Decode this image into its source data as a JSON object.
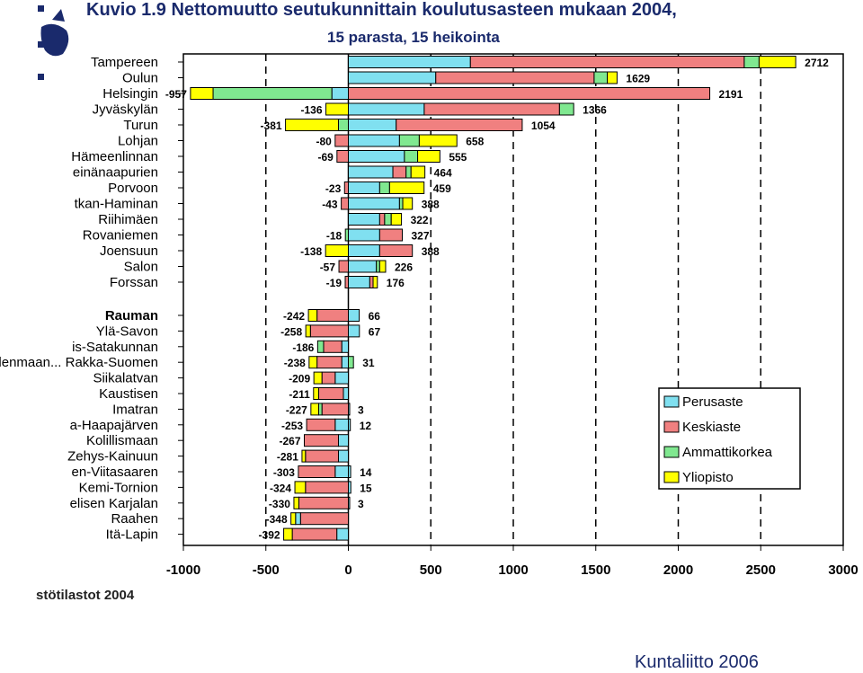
{
  "title": "Kuvio 1.9 Nettomuutto seutukunnittain koulutusasteen mukaan 2004,",
  "subtitle": "15 parasta, 15 heikointa",
  "source": "stötilastot 2004",
  "credit": "Kuntaliitto 2006",
  "colors": {
    "Perusaste": "#80e0f0",
    "Keskiaste": "#f08080",
    "Ammattikorkea": "#80e890",
    "Yliopisto": "#ffff00"
  },
  "chart_data": {
    "type": "bar",
    "orientation": "horizontal",
    "stacked": true,
    "xlim": [
      -1000,
      3000
    ],
    "xticks": [
      -1000,
      -500,
      0,
      500,
      1000,
      1500,
      2000,
      2500,
      3000
    ],
    "legend_position": "bottom-right",
    "series_names": [
      "Perusaste",
      "Keskiaste",
      "Ammattikorkea",
      "Yliopisto"
    ],
    "categories": [
      {
        "label": "Tampereen",
        "neg": null,
        "pos": "2712",
        "segs": [
          [
            0,
            740,
            "Perusaste"
          ],
          [
            740,
            2400,
            "Keskiaste"
          ],
          [
            2400,
            2490,
            "Ammattikorkea"
          ],
          [
            2490,
            2712,
            "Yliopisto"
          ]
        ]
      },
      {
        "label": "Oulun",
        "neg": null,
        "pos": "1629",
        "segs": [
          [
            0,
            530,
            "Perusaste"
          ],
          [
            530,
            1490,
            "Keskiaste"
          ],
          [
            1490,
            1570,
            "Ammattikorkea"
          ],
          [
            1570,
            1629,
            "Yliopisto"
          ]
        ]
      },
      {
        "label": "Helsingin",
        "neg": "-957",
        "pos": "2191",
        "segs": [
          [
            0,
            -100,
            "Perusaste"
          ],
          [
            -100,
            -820,
            "Ammattikorkea"
          ],
          [
            -820,
            -957,
            "Yliopisto"
          ],
          [
            0,
            2191,
            "Keskiaste"
          ]
        ]
      },
      {
        "label": "Jyväskylän",
        "neg": "-136",
        "pos": "1366",
        "segs": [
          [
            0,
            460,
            "Perusaste"
          ],
          [
            460,
            1280,
            "Keskiaste"
          ],
          [
            1280,
            1366,
            "Ammattikorkea"
          ],
          [
            0,
            -136,
            "Yliopisto"
          ]
        ]
      },
      {
        "label": "Turun",
        "neg": "-381",
        "pos": "1054",
        "segs": [
          [
            0,
            290,
            "Perusaste"
          ],
          [
            290,
            1054,
            "Keskiaste"
          ],
          [
            0,
            -60,
            "Ammattikorkea"
          ],
          [
            -60,
            -381,
            "Yliopisto"
          ]
        ]
      },
      {
        "label": "Lohjan",
        "neg": "-80",
        "pos": "658",
        "segs": [
          [
            0,
            310,
            "Perusaste"
          ],
          [
            310,
            430,
            "Ammattikorkea"
          ],
          [
            430,
            658,
            "Yliopisto"
          ],
          [
            0,
            -80,
            "Keskiaste"
          ]
        ]
      },
      {
        "label": "Hämeenlinnan",
        "neg": "-69",
        "pos": "555",
        "segs": [
          [
            0,
            340,
            "Perusaste"
          ],
          [
            340,
            420,
            "Ammattikorkea"
          ],
          [
            420,
            555,
            "Yliopisto"
          ],
          [
            0,
            -69,
            "Keskiaste"
          ]
        ]
      },
      {
        "label": "einänaapurien",
        "neg": null,
        "pos": "464",
        "segs": [
          [
            0,
            270,
            "Perusaste"
          ],
          [
            270,
            350,
            "Keskiaste"
          ],
          [
            350,
            380,
            "Ammattikorkea"
          ],
          [
            380,
            464,
            "Yliopisto"
          ]
        ]
      },
      {
        "label": "Porvoon",
        "neg": "-23",
        "pos": "459",
        "segs": [
          [
            0,
            190,
            "Perusaste"
          ],
          [
            190,
            250,
            "Ammattikorkea"
          ],
          [
            250,
            459,
            "Yliopisto"
          ],
          [
            0,
            -23,
            "Keskiaste"
          ]
        ]
      },
      {
        "label": "tkan-Haminan",
        "neg": "-43",
        "pos": "388",
        "segs": [
          [
            0,
            310,
            "Perusaste"
          ],
          [
            310,
            330,
            "Ammattikorkea"
          ],
          [
            330,
            388,
            "Yliopisto"
          ],
          [
            0,
            -43,
            "Keskiaste"
          ]
        ]
      },
      {
        "label": "Riihimäen",
        "neg": null,
        "pos": "322",
        "segs": [
          [
            0,
            190,
            "Perusaste"
          ],
          [
            190,
            220,
            "Keskiaste"
          ],
          [
            220,
            260,
            "Ammattikorkea"
          ],
          [
            260,
            322,
            "Yliopisto"
          ]
        ]
      },
      {
        "label": "Rovaniemen",
        "neg": "-18",
        "pos": "327",
        "segs": [
          [
            0,
            190,
            "Perusaste"
          ],
          [
            190,
            327,
            "Keskiaste"
          ],
          [
            0,
            -18,
            "Ammattikorkea"
          ]
        ]
      },
      {
        "label": "Joensuun",
        "neg": "-138",
        "pos": "388",
        "segs": [
          [
            0,
            190,
            "Perusaste"
          ],
          [
            190,
            388,
            "Keskiaste"
          ],
          [
            0,
            -138,
            "Yliopisto"
          ]
        ]
      },
      {
        "label": "Salon",
        "neg": "-57",
        "pos": "226",
        "segs": [
          [
            0,
            170,
            "Perusaste"
          ],
          [
            170,
            190,
            "Ammattikorkea"
          ],
          [
            190,
            226,
            "Yliopisto"
          ],
          [
            0,
            -57,
            "Keskiaste"
          ]
        ]
      },
      {
        "label": "Forssan",
        "neg": "-19",
        "pos": "176",
        "segs": [
          [
            0,
            130,
            "Perusaste"
          ],
          [
            130,
            150,
            "Keskiaste"
          ],
          [
            150,
            176,
            "Yliopisto"
          ],
          [
            0,
            -19,
            "Keskiaste"
          ]
        ]
      },
      {
        "label": "Rauman",
        "neg": "-242",
        "pos": "66",
        "segs": [
          [
            0,
            66,
            "Perusaste"
          ],
          [
            0,
            -190,
            "Keskiaste"
          ],
          [
            -190,
            -242,
            "Yliopisto"
          ]
        ]
      },
      {
        "label": "Ylä-Savon",
        "neg": "-258",
        "pos": "67",
        "segs": [
          [
            0,
            67,
            "Perusaste"
          ],
          [
            0,
            -230,
            "Keskiaste"
          ],
          [
            -230,
            -258,
            "Yliopisto"
          ]
        ]
      },
      {
        "label": "is-Satakunnan",
        "neg": "-186",
        "pos": null,
        "segs": [
          [
            0,
            -40,
            "Perusaste"
          ],
          [
            -40,
            -150,
            "Keskiaste"
          ],
          [
            -150,
            -186,
            "Ammattikorkea"
          ]
        ]
      },
      {
        "label": "Itä-Uudenmaan... Rakka-Suomen",
        "neg": "-238",
        "pos": "31",
        "segs": [
          [
            0,
            31,
            "Ammattikorkea"
          ],
          [
            0,
            -40,
            "Perusaste"
          ],
          [
            -40,
            -190,
            "Keskiaste"
          ],
          [
            -190,
            -238,
            "Yliopisto"
          ]
        ]
      },
      {
        "label": "Siikalatvan",
        "neg": "-209",
        "pos": null,
        "segs": [
          [
            0,
            -80,
            "Perusaste"
          ],
          [
            -80,
            -160,
            "Keskiaste"
          ],
          [
            -160,
            -209,
            "Yliopisto"
          ]
        ]
      },
      {
        "label": "Kaustisen",
        "neg": "-211",
        "pos": null,
        "segs": [
          [
            0,
            -30,
            "Perusaste"
          ],
          [
            -30,
            -180,
            "Keskiaste"
          ],
          [
            -180,
            -211,
            "Yliopisto"
          ]
        ]
      },
      {
        "label": "Imatran",
        "neg": "-227",
        "pos": "3",
        "segs": [
          [
            0,
            3,
            "Perusaste"
          ],
          [
            0,
            -160,
            "Keskiaste"
          ],
          [
            -160,
            -180,
            "Ammattikorkea"
          ],
          [
            -180,
            -227,
            "Yliopisto"
          ]
        ]
      },
      {
        "label": "a-Haapajärven",
        "neg": "-253",
        "pos": "12",
        "segs": [
          [
            0,
            12,
            "Perusaste"
          ],
          [
            0,
            -80,
            "Perusaste"
          ],
          [
            -80,
            -253,
            "Keskiaste"
          ]
        ]
      },
      {
        "label": "Kolillismaan",
        "neg": "-267",
        "pos": null,
        "segs": [
          [
            0,
            -60,
            "Perusaste"
          ],
          [
            -60,
            -267,
            "Keskiaste"
          ]
        ]
      },
      {
        "label": "Zehys-Kainuun",
        "neg": "-281",
        "pos": null,
        "segs": [
          [
            0,
            -60,
            "Perusaste"
          ],
          [
            -60,
            -260,
            "Keskiaste"
          ],
          [
            -260,
            -281,
            "Yliopisto"
          ]
        ]
      },
      {
        "label": "en-Viitasaaren",
        "neg": "-303",
        "pos": "14",
        "segs": [
          [
            0,
            14,
            "Perusaste"
          ],
          [
            0,
            -80,
            "Perusaste"
          ],
          [
            -80,
            -303,
            "Keskiaste"
          ]
        ]
      },
      {
        "label": "Kemi-Tornion",
        "neg": "-324",
        "pos": "15",
        "segs": [
          [
            0,
            15,
            "Perusaste"
          ],
          [
            0,
            -260,
            "Keskiaste"
          ],
          [
            -260,
            -324,
            "Yliopisto"
          ]
        ]
      },
      {
        "label": "elisen Karjalan",
        "neg": "-330",
        "pos": "3",
        "segs": [
          [
            0,
            3,
            "Perusaste"
          ],
          [
            0,
            -300,
            "Keskiaste"
          ],
          [
            -300,
            -330,
            "Yliopisto"
          ]
        ]
      },
      {
        "label": "Raahen",
        "neg": "-348",
        "pos": null,
        "segs": [
          [
            0,
            -290,
            "Keskiaste"
          ],
          [
            -290,
            -320,
            "Perusaste"
          ],
          [
            -320,
            -348,
            "Yliopisto"
          ]
        ]
      },
      {
        "label": "Itä-Lapin",
        "neg": "-392",
        "pos": null,
        "segs": [
          [
            0,
            -70,
            "Perusaste"
          ],
          [
            -70,
            -340,
            "Keskiaste"
          ],
          [
            -340,
            -392,
            "Yliopisto"
          ]
        ]
      }
    ]
  }
}
